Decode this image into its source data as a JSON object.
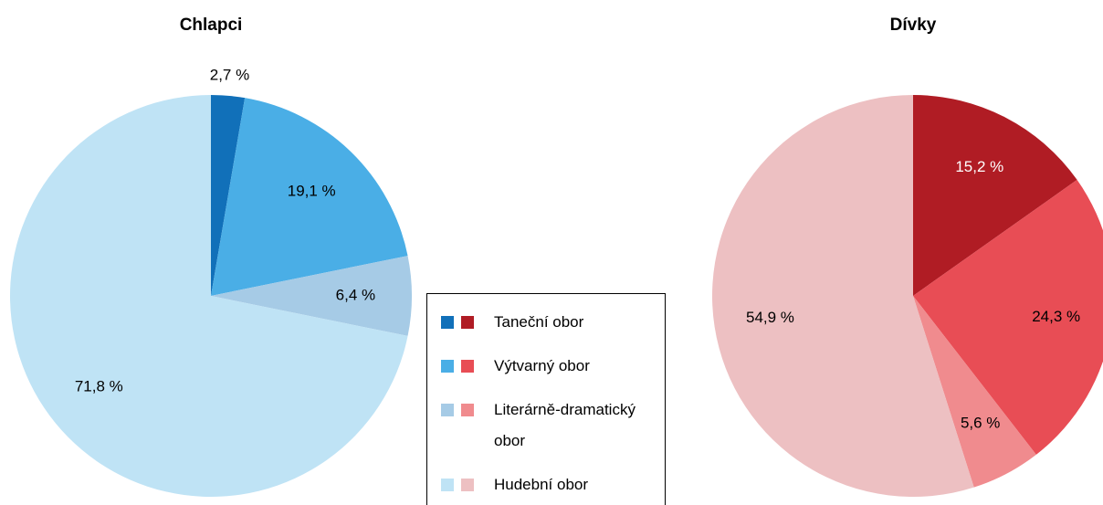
{
  "chart_data": [
    {
      "type": "pie",
      "title": "Chlapci",
      "categories": [
        "Taneční obor",
        "Výtvarný obor",
        "Literárně-dramatický obor",
        "Hudební obor"
      ],
      "values": [
        2.7,
        19.1,
        6.4,
        71.8
      ],
      "value_labels": [
        "2,7 %",
        "19,1 %",
        "6,4 %",
        "71,8 %"
      ],
      "colors": [
        "#1170b9",
        "#4aaee6",
        "#a6cbe6",
        "#bfe3f5"
      ]
    },
    {
      "type": "pie",
      "title": "Dívky",
      "values": [
        15.2,
        24.3,
        5.6,
        54.9
      ],
      "value_labels": [
        "15,2 %",
        "24,3 %",
        "5,6 %",
        "54,9 %"
      ],
      "colors": [
        "#b01c24",
        "#e84d55",
        "#f08b8e",
        "#edc0c2"
      ]
    }
  ]
}
